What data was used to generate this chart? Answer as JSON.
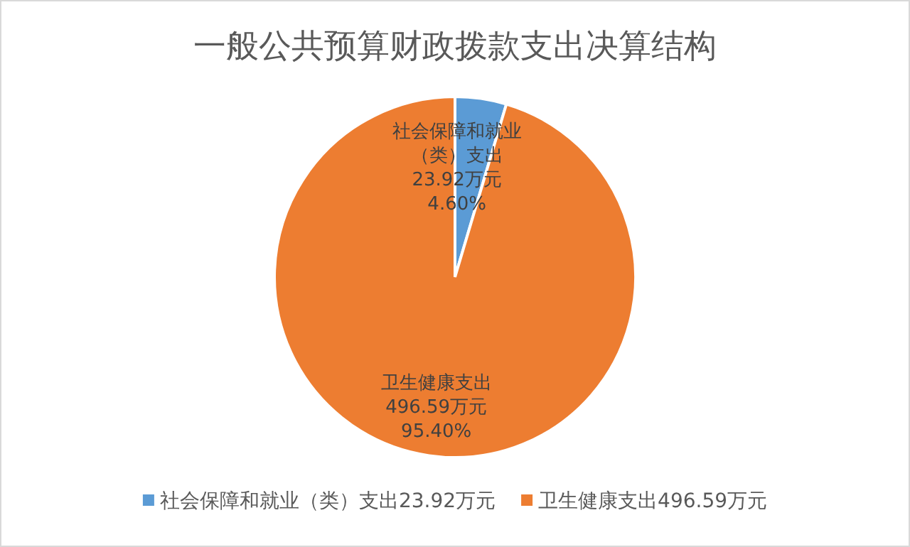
{
  "chart_data": {
    "type": "pie",
    "title": "一般公共预算财政拨款支出决算结构",
    "categories": [
      "社会保障和就业（类）支出23.92万元",
      "卫生健康支出496.59万元"
    ],
    "values": [
      23.92,
      496.59
    ],
    "colors": [
      "#5b9bd5",
      "#ed7d31"
    ],
    "value_labels": [
      "社会保障和就业（类）支出\n23.92万元\n4.60%",
      "卫生健康支出\n496.59万元\n95.40%"
    ],
    "legend": "bottom"
  }
}
